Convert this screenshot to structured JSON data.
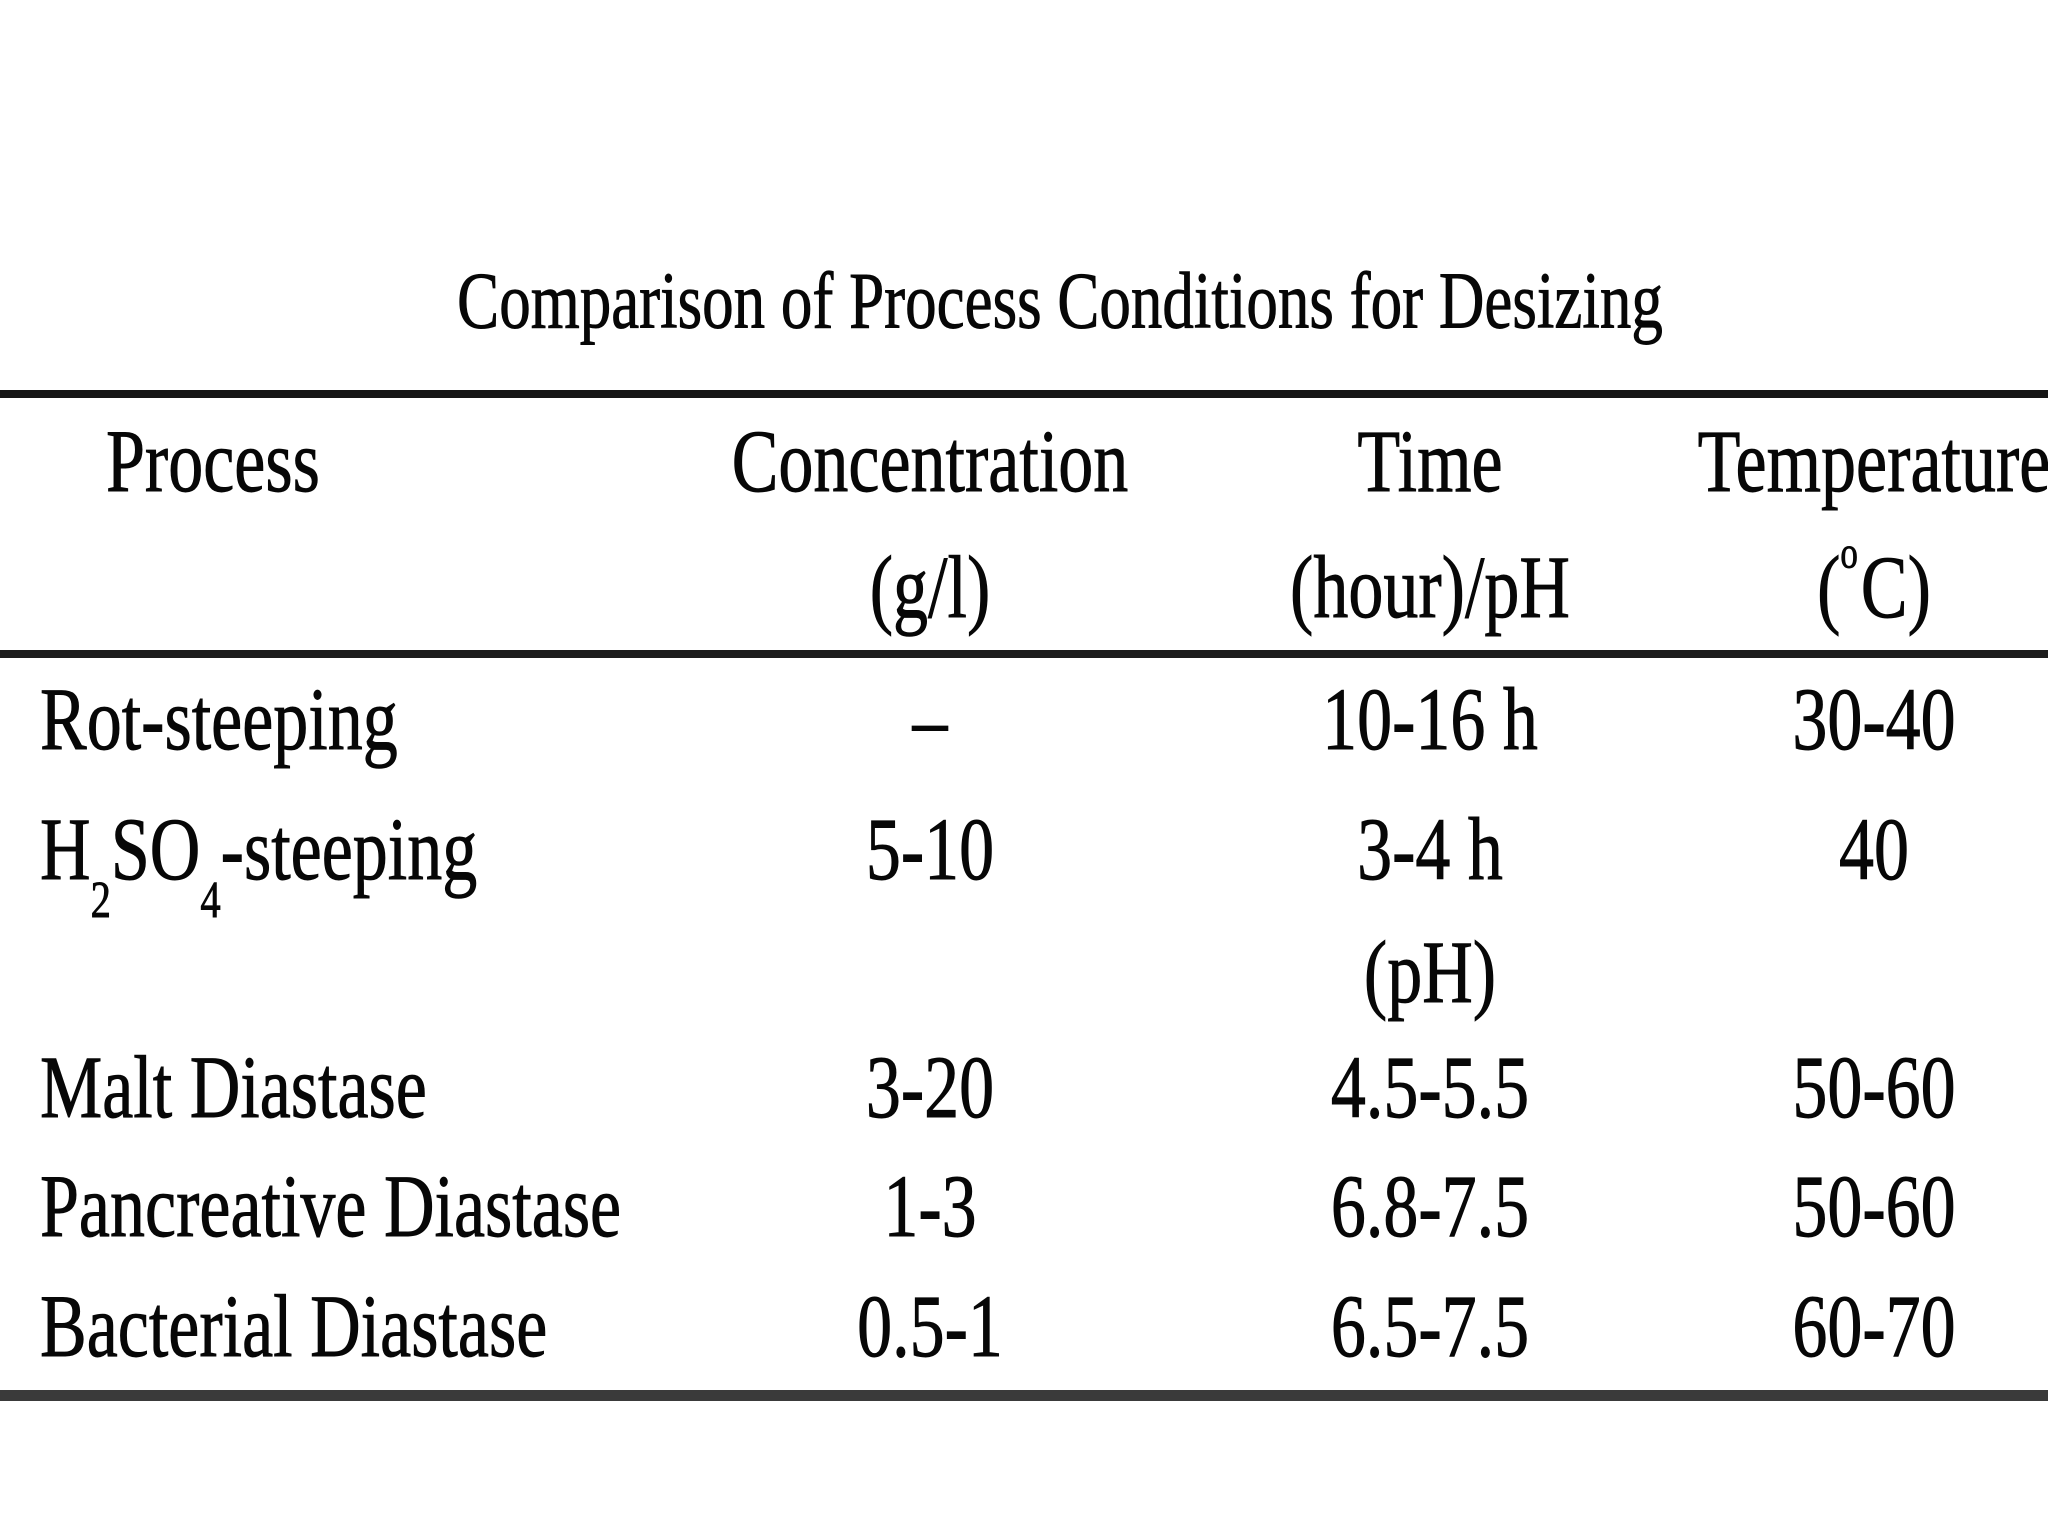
{
  "page": {
    "background": "#ffffff",
    "ink_color": "#070707",
    "rule_color": "#1d1d1d"
  },
  "title": "Comparison of Process Conditions for Desizing",
  "table": {
    "columns": [
      {
        "label": "Process",
        "sublabel": ""
      },
      {
        "label": "Concentration",
        "sublabel": "(g/l)"
      },
      {
        "label": "Time",
        "sublabel": "(hour)/pH"
      },
      {
        "label": "Temperature",
        "sublabel_parts": {
          "open": "(",
          "sup": "o",
          "rest": "C)"
        }
      }
    ],
    "rows": [
      {
        "process": "Rot-steeping",
        "concentration": "–",
        "time": "10-16 h",
        "temperature": "30-40"
      },
      {
        "process_parts": {
          "p1": "H",
          "sub1": "2",
          "p2": "SO",
          "sub2": "4",
          "p3": "-steeping"
        },
        "concentration": "5-10",
        "time": "3-4 h",
        "temperature": "40"
      },
      {
        "process": "",
        "concentration": "",
        "time": "(pH)",
        "temperature": ""
      },
      {
        "process": "Malt Diastase",
        "concentration": "3-20",
        "time": "4.5-5.5",
        "temperature": "50-60"
      },
      {
        "process": "Pancreative Diastase",
        "concentration": "1-3",
        "time": "6.8-7.5",
        "temperature": "50-60"
      },
      {
        "process": "Bacterial Diastase",
        "concentration": "0.5-1",
        "time": "6.5-7.5",
        "temperature": "60-70"
      }
    ]
  }
}
